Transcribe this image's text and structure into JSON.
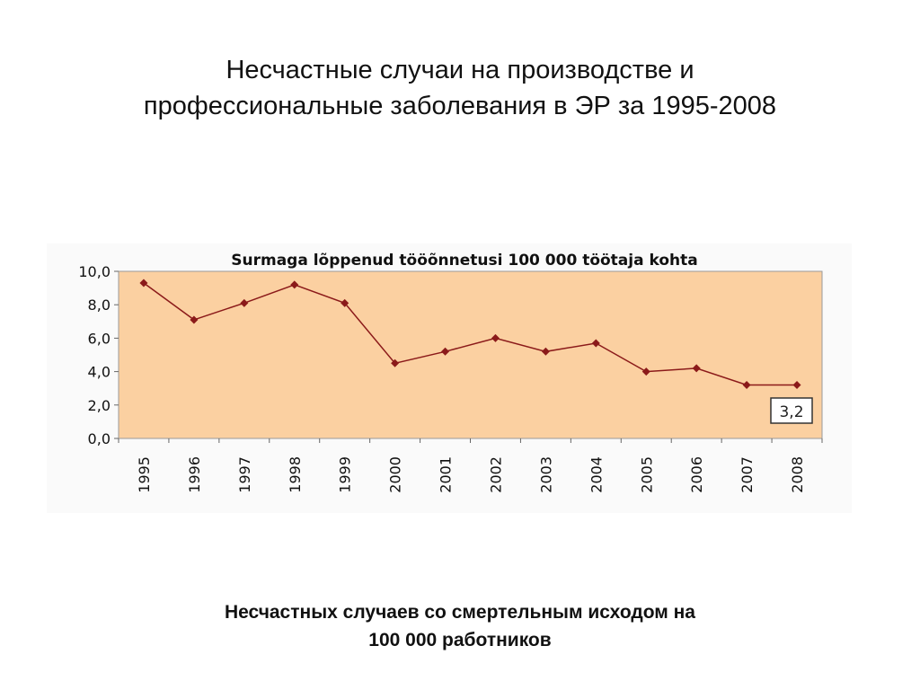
{
  "slide": {
    "title_line1": "Несчастные случаи на производстве и",
    "title_line2": "профессиональные заболевания в ЭР за 1995-2008",
    "caption_line1": "Несчастных случаев со смертельным исходом на",
    "caption_line2": "100 000 работников"
  },
  "colors": {
    "plot_bg": "#fbd0a1",
    "line": "#8b1a1a",
    "marker": "#8b1a1a",
    "callout_border": "#333333"
  },
  "chart_data": {
    "type": "line",
    "title": "Surmaga lõppenud tööõnnetusi 100 000 töötaja kohta",
    "xlabel": "",
    "ylabel": "",
    "categories": [
      "1995",
      "1996",
      "1997",
      "1998",
      "1999",
      "2000",
      "2001",
      "2002",
      "2003",
      "2004",
      "2005",
      "2006",
      "2007",
      "2008"
    ],
    "values": [
      9.3,
      7.1,
      8.1,
      9.2,
      8.1,
      4.5,
      5.2,
      6.0,
      5.2,
      5.7,
      4.0,
      4.2,
      3.2,
      3.2
    ],
    "ylim": [
      0,
      10
    ],
    "yticks": [
      "0,0",
      "2,0",
      "4,0",
      "6,0",
      "8,0",
      "10,0"
    ],
    "ytick_values": [
      0,
      2,
      4,
      6,
      8,
      10
    ],
    "grid": false,
    "legend": "none",
    "annotation": "3,2"
  }
}
